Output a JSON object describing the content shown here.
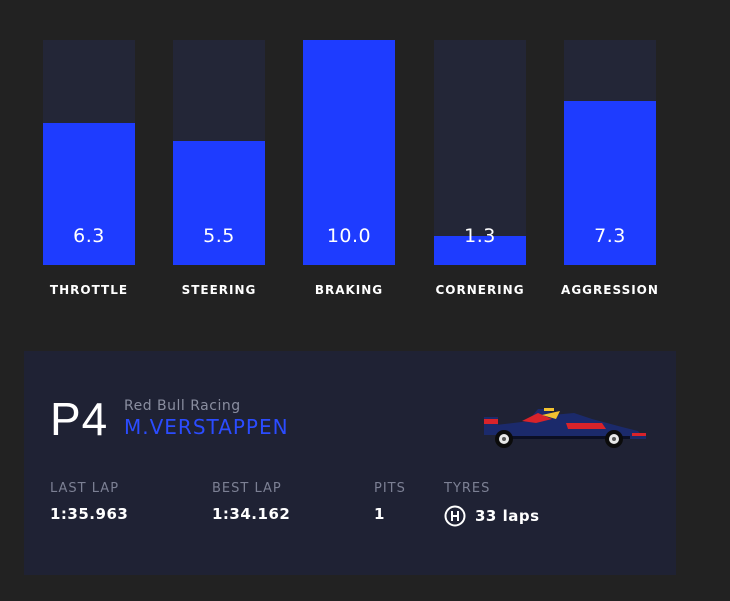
{
  "stats": [
    {
      "label": "THROTTLE",
      "value": "6.3",
      "level": 6.3
    },
    {
      "label": "STEERING",
      "value": "5.5",
      "level": 5.5
    },
    {
      "label": "BRAKING",
      "value": "10.0",
      "level": 10.0
    },
    {
      "label": "CORNERING",
      "value": "1.3",
      "level": 1.3
    },
    {
      "label": "AGGRESSION",
      "value": "7.3",
      "level": 7.3
    }
  ],
  "stat_max": 10,
  "driver": {
    "position": "P4",
    "team": "Red Bull Racing",
    "name": "M.VERSTAPPEN",
    "car_icon": "f1-car-icon",
    "last_lap_label": "LAST LAP",
    "last_lap": "1:35.963",
    "best_lap_label": "BEST LAP",
    "best_lap": "1:34.162",
    "pits_label": "PITS",
    "pits": "1",
    "tyres_label": "TYRES",
    "tyre_icon": "hard-tyre-icon",
    "tyres": "33 laps"
  },
  "colors": {
    "background": "#222222",
    "bar_track": "#232637",
    "bar_fill": "#1e3cff",
    "card": "#1f2234",
    "driver_name": "#2b4cff"
  }
}
